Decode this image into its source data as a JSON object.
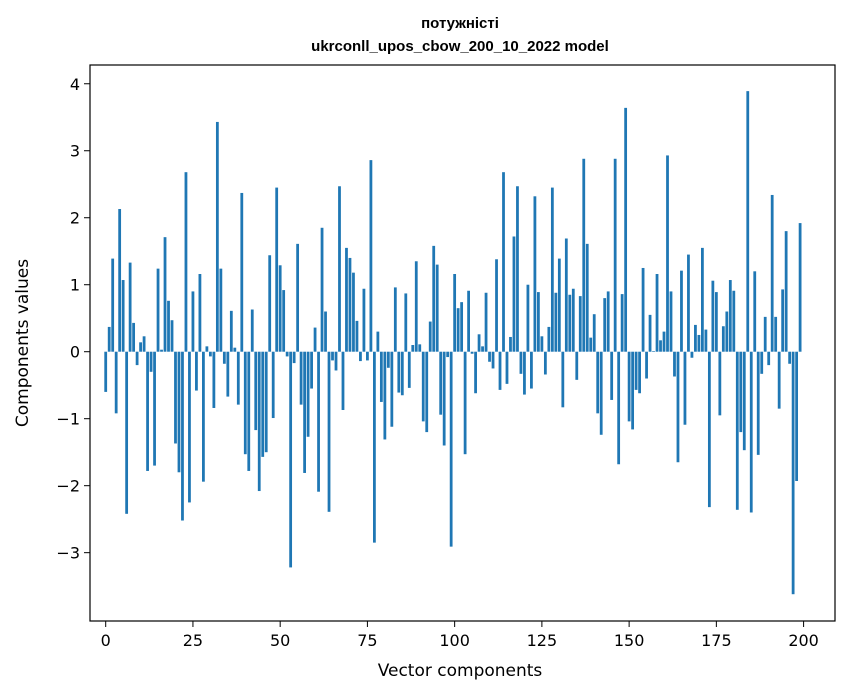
{
  "chart_data": {
    "type": "bar",
    "title": "потужністі",
    "subtitle": "ukrconll_upos_cbow_200_10_2022 model",
    "xlabel": "Vector components",
    "ylabel": "Components values",
    "xlim": [
      -4.5,
      209
    ],
    "ylim": [
      -4.02,
      4.28
    ],
    "xticks": [
      0,
      25,
      50,
      75,
      100,
      125,
      150,
      175,
      200
    ],
    "yticks": [
      -3,
      -2,
      -1,
      0,
      1,
      2,
      3,
      4
    ],
    "ytick_labels": [
      "−3",
      "−2",
      "−1",
      "0",
      "1",
      "2",
      "3",
      "4"
    ],
    "grid": false,
    "bar_color": "#1f77b4",
    "values": [
      -0.6,
      0.37,
      1.39,
      -0.92,
      2.13,
      1.07,
      -2.42,
      1.33,
      0.43,
      -0.2,
      0.14,
      0.23,
      -1.78,
      -0.3,
      -1.7,
      1.24,
      0.03,
      1.71,
      0.76,
      0.47,
      -1.37,
      -1.8,
      -2.52,
      2.68,
      -2.25,
      0.9,
      -0.58,
      1.16,
      -1.94,
      0.08,
      -0.07,
      -0.84,
      3.43,
      1.24,
      -0.18,
      -0.67,
      0.61,
      0.06,
      -0.79,
      2.37,
      -1.53,
      -1.78,
      0.63,
      -1.17,
      -2.08,
      -1.57,
      -1.5,
      1.44,
      -0.99,
      2.45,
      1.29,
      0.92,
      -0.07,
      -3.22,
      -0.17,
      1.61,
      -0.79,
      -1.81,
      -1.27,
      -0.55,
      0.36,
      -2.09,
      1.85,
      0.6,
      -2.39,
      -0.13,
      -0.28,
      2.47,
      -0.87,
      1.55,
      1.4,
      1.18,
      0.46,
      -0.14,
      0.94,
      -0.13,
      2.86,
      -2.85,
      0.3,
      -0.75,
      -1.31,
      -0.24,
      -1.12,
      0.96,
      -0.61,
      -0.65,
      0.87,
      -0.54,
      0.1,
      1.35,
      0.11,
      -1.04,
      -1.2,
      0.45,
      1.58,
      1.3,
      -0.94,
      -1.4,
      -0.08,
      -2.91,
      1.16,
      0.65,
      0.74,
      -1.53,
      0.91,
      -0.03,
      -0.62,
      0.26,
      0.08,
      0.88,
      -0.15,
      -0.25,
      1.38,
      -0.57,
      2.68,
      -0.48,
      0.22,
      1.72,
      2.47,
      -0.33,
      -0.64,
      1.0,
      -0.55,
      2.32,
      0.89,
      0.23,
      -0.34,
      0.37,
      2.45,
      0.88,
      1.39,
      -0.83,
      1.69,
      0.85,
      0.94,
      -0.42,
      0.83,
      2.88,
      1.61,
      0.21,
      0.56,
      -0.92,
      -1.24,
      0.8,
      0.9,
      -0.72,
      2.88,
      -1.68,
      0.86,
      3.64,
      -1.04,
      -1.16,
      -0.57,
      -0.62,
      1.25,
      -0.4,
      0.55,
      0.01,
      1.16,
      0.17,
      0.3,
      2.93,
      0.9,
      -0.37,
      -1.65,
      1.21,
      -1.09,
      1.45,
      -0.09,
      0.4,
      0.25,
      1.55,
      0.33,
      -2.32,
      1.06,
      0.89,
      -0.95,
      0.38,
      0.6,
      1.07,
      0.91,
      -2.36,
      -1.2,
      -1.47,
      3.89,
      -2.4,
      1.2,
      -1.54,
      -0.33,
      0.52,
      -0.2,
      2.34,
      0.52,
      -0.85,
      0.93,
      1.8,
      -0.18,
      -3.62,
      -1.93,
      1.92
    ]
  }
}
